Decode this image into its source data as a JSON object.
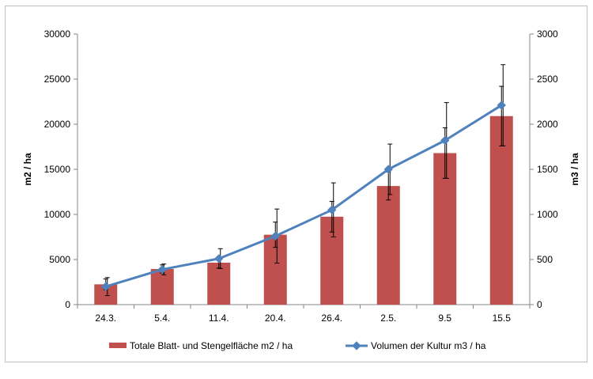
{
  "chart_data": {
    "type": "bar",
    "categories": [
      "24.3.",
      "5.4.",
      "11.4.",
      "20.4.",
      "26.4.",
      "2.5.",
      "9.5",
      "15.5"
    ],
    "series": [
      {
        "name": "Totale Blatt- und Stengelfläche  m2 / ha",
        "type": "bar",
        "axis": "left",
        "color": "#c0504d",
        "values": [
          2250,
          3950,
          4650,
          7750,
          9750,
          13150,
          16800,
          20900
        ],
        "error": [
          600,
          450,
          600,
          1400,
          1700,
          1550,
          2800,
          3300
        ]
      },
      {
        "name": "Volumen der Kultur m3 / ha",
        "type": "line",
        "axis": "right",
        "color": "#4f81bd",
        "values": [
          200,
          390,
          510,
          760,
          1050,
          1500,
          1820,
          2210
        ],
        "error": [
          100,
          60,
          110,
          300,
          300,
          280,
          420,
          450
        ]
      }
    ],
    "ylabel": "m2 / ha",
    "y2label": "m3 / ha",
    "ylim": [
      0,
      30000
    ],
    "y2lim": [
      0,
      3000
    ],
    "yticks": [
      "0",
      "5000",
      "10000",
      "15000",
      "20000",
      "25000",
      "30000"
    ],
    "y2ticks": [
      "0",
      "500",
      "1000",
      "1500",
      "2000",
      "2500",
      "3000"
    ],
    "grid": false,
    "legend_position": "bottom"
  }
}
